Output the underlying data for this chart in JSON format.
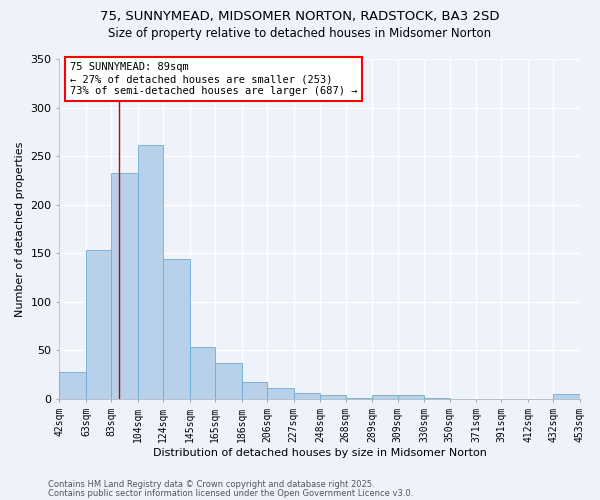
{
  "title1": "75, SUNNYMEAD, MIDSOMER NORTON, RADSTOCK, BA3 2SD",
  "title2": "Size of property relative to detached houses in Midsomer Norton",
  "xlabel": "Distribution of detached houses by size in Midsomer Norton",
  "ylabel": "Number of detached properties",
  "footnote1": "Contains HM Land Registry data © Crown copyright and database right 2025.",
  "footnote2": "Contains public sector information licensed under the Open Government Licence v3.0.",
  "annotation_line1": "75 SUNNYMEAD: 89sqm",
  "annotation_line2": "← 27% of detached houses are smaller (253)",
  "annotation_line3": "73% of semi-detached houses are larger (687) →",
  "bar_color": "#b8d0ea",
  "bar_edge_color": "#6aaed6",
  "vline_color": "#cc0000",
  "vline_x": 89,
  "bins": [
    42,
    63,
    83,
    104,
    124,
    145,
    165,
    186,
    206,
    227,
    248,
    268,
    289,
    309,
    330,
    350,
    371,
    391,
    412,
    432,
    453
  ],
  "values": [
    28,
    153,
    233,
    261,
    144,
    54,
    37,
    18,
    11,
    6,
    4,
    1,
    4,
    4,
    1,
    0,
    0,
    0,
    0,
    5
  ],
  "ylim": [
    0,
    350
  ],
  "yticks": [
    0,
    50,
    100,
    150,
    200,
    250,
    300,
    350
  ],
  "background_color": "#eef2fb",
  "grid_color": "#ffffff",
  "title1_fontsize": 9.5,
  "title2_fontsize": 8.5,
  "xlabel_fontsize": 8,
  "ylabel_fontsize": 8,
  "tick_fontsize": 7,
  "footnote_fontsize": 6,
  "annotation_fontsize": 7.5
}
